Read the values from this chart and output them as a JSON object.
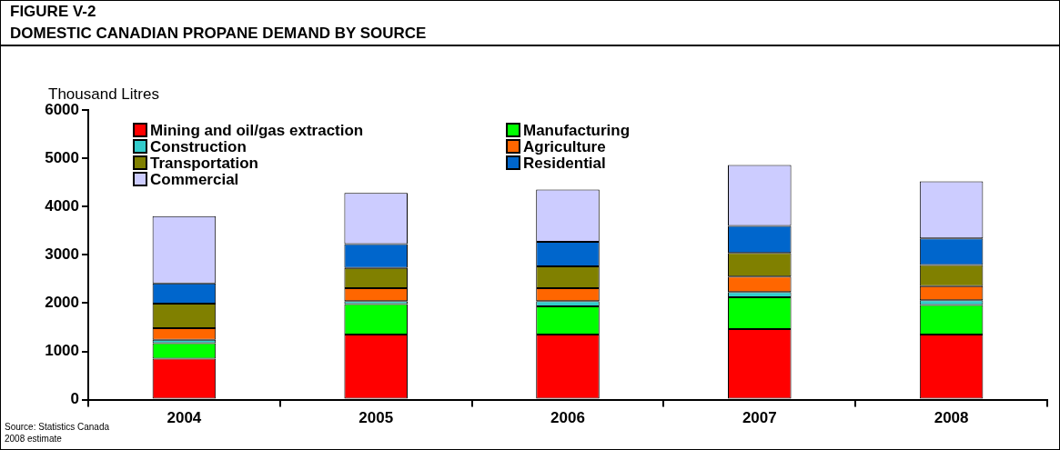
{
  "chart_data": {
    "type": "bar",
    "title": "FIGURE V-2",
    "subtitle": "DOMESTIC CANADIAN PROPANE DEMAND BY SOURCE",
    "ylabel": "Thousand Litres",
    "categories": [
      "2004",
      "2005",
      "2006",
      "2007",
      "2008"
    ],
    "stacked": true,
    "legend": "top left",
    "grid": false,
    "ylim": [
      0,
      6000
    ],
    "yticks": [
      0,
      1000,
      2000,
      3000,
      4000,
      5000,
      6000
    ],
    "series": [
      {
        "name": "Mining and oil/gas extraction",
        "color": "#ff0000",
        "values": [
          850,
          1350,
          1350,
          1460,
          1350
        ]
      },
      {
        "name": "Manufacturing",
        "color": "#00ff00",
        "values": [
          320,
          630,
          580,
          660,
          610
        ]
      },
      {
        "name": "Construction",
        "color": "#33cccc",
        "values": [
          70,
          60,
          110,
          110,
          100
        ]
      },
      {
        "name": "Agriculture",
        "color": "#ff6600",
        "values": [
          240,
          270,
          270,
          320,
          290
        ]
      },
      {
        "name": "Transportation",
        "color": "#808000",
        "values": [
          510,
          420,
          450,
          490,
          440
        ]
      },
      {
        "name": "Residential",
        "color": "#0066cc",
        "values": [
          420,
          490,
          510,
          560,
          550
        ]
      },
      {
        "name": "Commercial",
        "color": "#ccccff",
        "values": [
          1390,
          1060,
          1080,
          1260,
          1180
        ]
      }
    ],
    "annotations": [
      "Source: Statistics Canada",
      "2008 estimate"
    ]
  }
}
